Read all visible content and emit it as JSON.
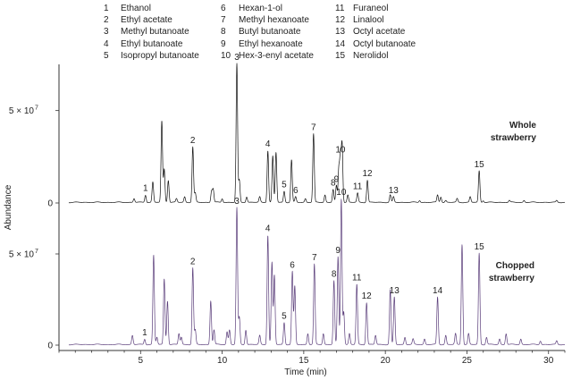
{
  "legend": [
    {
      "num": "1",
      "name": "Ethanol"
    },
    {
      "num": "2",
      "name": "Ethyl acetate"
    },
    {
      "num": "3",
      "name": "Methyl butanoate"
    },
    {
      "num": "4",
      "name": "Ethyl butanoate"
    },
    {
      "num": "5",
      "name": "Isopropyl butanoate"
    },
    {
      "num": "6",
      "name": "Hexan-1-ol"
    },
    {
      "num": "7",
      "name": "Methyl hexanoate"
    },
    {
      "num": "8",
      "name": "Butyl butanoate"
    },
    {
      "num": "9",
      "name": "Ethyl hexanoate"
    },
    {
      "num": "10",
      "name": "Hex-3-enyl acetate"
    },
    {
      "num": "11",
      "name": "Furaneol"
    },
    {
      "num": "12",
      "name": "Linalool"
    },
    {
      "num": "13",
      "name": "Octyl acetate"
    },
    {
      "num": "14",
      "name": "Octyl butanoate"
    },
    {
      "num": "15",
      "name": "Nerolidol"
    }
  ],
  "chart_data": {
    "type": "line",
    "xlabel": "Time (min)",
    "ylabel": "Abundance",
    "xlim": [
      0,
      31
    ],
    "x_ticks": [
      5,
      10,
      15,
      20,
      25,
      30
    ],
    "y_tick_value": 50000000,
    "y_tick_label": "5 × 10",
    "y_tick_exp": "7",
    "y_zero_label": "0",
    "ylim": [
      0,
      75000000
    ],
    "grid": false,
    "colors": {
      "whole": "#111111",
      "chopped": "#5a3d7a"
    },
    "panels": [
      {
        "title_lines": [
          "Whole",
          "strawberry"
        ],
        "peaks": [
          [
            4.6,
            2
          ],
          [
            5.3,
            4
          ],
          [
            5.75,
            11
          ],
          [
            6.3,
            44
          ],
          [
            6.45,
            18
          ],
          [
            6.7,
            12
          ],
          [
            7.2,
            2
          ],
          [
            7.7,
            3
          ],
          [
            8.2,
            30
          ],
          [
            8.35,
            5
          ],
          [
            9.35,
            6
          ],
          [
            9.45,
            7
          ],
          [
            10.0,
            2
          ],
          [
            10.9,
            75
          ],
          [
            11.05,
            12
          ],
          [
            11.5,
            3
          ],
          [
            12.3,
            3
          ],
          [
            12.8,
            28
          ],
          [
            13.1,
            25
          ],
          [
            13.3,
            27
          ],
          [
            13.8,
            6
          ],
          [
            14.25,
            23
          ],
          [
            14.5,
            3
          ],
          [
            15.1,
            2
          ],
          [
            15.6,
            37
          ],
          [
            16.3,
            4
          ],
          [
            16.8,
            7
          ],
          [
            17.0,
            9
          ],
          [
            17.15,
            18
          ],
          [
            17.25,
            25
          ],
          [
            17.35,
            31
          ],
          [
            17.7,
            4
          ],
          [
            18.3,
            5
          ],
          [
            18.9,
            12
          ],
          [
            20.3,
            4
          ],
          [
            20.5,
            3
          ],
          [
            22.1,
            1
          ],
          [
            23.2,
            4
          ],
          [
            23.4,
            3
          ],
          [
            23.7,
            1
          ],
          [
            24.4,
            2
          ],
          [
            25.2,
            3
          ],
          [
            25.75,
            17
          ],
          [
            26.0,
            1
          ],
          [
            27.6,
            1
          ],
          [
            28.5,
            1
          ],
          [
            30.5,
            1
          ]
        ],
        "labels": [
          {
            "text": "1",
            "x": 5.3,
            "y": 4
          },
          {
            "text": "2",
            "x": 8.2,
            "y": 30
          },
          {
            "text": "3",
            "x": 10.9,
            "y": 75
          },
          {
            "text": "4",
            "x": 12.8,
            "y": 28
          },
          {
            "text": "5",
            "x": 13.8,
            "y": 6
          },
          {
            "text": "6",
            "x": 14.5,
            "y": 3
          },
          {
            "text": "7",
            "x": 15.6,
            "y": 37
          },
          {
            "text": "8",
            "x": 16.8,
            "y": 7
          },
          {
            "text": "9",
            "x": 17.0,
            "y": 9
          },
          {
            "text": "10",
            "x": 17.25,
            "y": 25
          },
          {
            "text": "11",
            "x": 18.3,
            "y": 5
          },
          {
            "text": "12",
            "x": 18.9,
            "y": 12
          },
          {
            "text": "13",
            "x": 20.5,
            "y": 3
          },
          {
            "text": "15",
            "x": 25.75,
            "y": 17
          }
        ]
      },
      {
        "title_lines": [
          "Chopped",
          "strawberry"
        ],
        "peaks": [
          [
            4.5,
            5
          ],
          [
            5.25,
            3
          ],
          [
            5.8,
            49
          ],
          [
            6.0,
            4
          ],
          [
            6.45,
            36
          ],
          [
            6.65,
            24
          ],
          [
            7.35,
            6
          ],
          [
            7.5,
            4
          ],
          [
            8.2,
            42
          ],
          [
            8.35,
            8
          ],
          [
            9.3,
            24
          ],
          [
            9.5,
            8
          ],
          [
            10.3,
            7
          ],
          [
            10.45,
            8
          ],
          [
            10.9,
            75
          ],
          [
            11.05,
            15
          ],
          [
            11.45,
            8
          ],
          [
            12.3,
            5
          ],
          [
            12.8,
            60
          ],
          [
            13.05,
            45
          ],
          [
            13.2,
            38
          ],
          [
            13.8,
            12
          ],
          [
            14.3,
            40
          ],
          [
            14.45,
            32
          ],
          [
            15.25,
            6
          ],
          [
            15.65,
            44
          ],
          [
            16.2,
            6
          ],
          [
            16.85,
            35
          ],
          [
            17.1,
            48
          ],
          [
            17.3,
            80
          ],
          [
            17.45,
            18
          ],
          [
            17.8,
            6
          ],
          [
            18.25,
            33
          ],
          [
            18.85,
            23
          ],
          [
            19.4,
            5
          ],
          [
            20.3,
            30
          ],
          [
            20.55,
            26
          ],
          [
            21.2,
            4
          ],
          [
            21.7,
            3
          ],
          [
            22.4,
            3
          ],
          [
            23.2,
            26
          ],
          [
            23.7,
            5
          ],
          [
            24.3,
            6
          ],
          [
            24.7,
            55
          ],
          [
            25.1,
            6
          ],
          [
            25.75,
            50
          ],
          [
            26.2,
            4
          ],
          [
            27.0,
            3
          ],
          [
            27.4,
            6
          ],
          [
            28.3,
            3
          ],
          [
            29.5,
            2
          ],
          [
            30.5,
            2
          ]
        ],
        "labels": [
          {
            "text": "1",
            "x": 5.25,
            "y": 3
          },
          {
            "text": "2",
            "x": 8.2,
            "y": 42
          },
          {
            "text": "3",
            "x": 10.9,
            "y": 75
          },
          {
            "text": "4",
            "x": 12.8,
            "y": 60
          },
          {
            "text": "5",
            "x": 13.8,
            "y": 12
          },
          {
            "text": "6",
            "x": 14.3,
            "y": 40
          },
          {
            "text": "7",
            "x": 15.65,
            "y": 44
          },
          {
            "text": "8",
            "x": 16.85,
            "y": 35
          },
          {
            "text": "9",
            "x": 17.1,
            "y": 48
          },
          {
            "text": "10",
            "x": 17.3,
            "y": 80
          },
          {
            "text": "11",
            "x": 18.25,
            "y": 33
          },
          {
            "text": "12",
            "x": 18.85,
            "y": 23
          },
          {
            "text": "13",
            "x": 20.55,
            "y": 26
          },
          {
            "text": "14",
            "x": 23.2,
            "y": 26
          },
          {
            "text": "15",
            "x": 25.75,
            "y": 50
          }
        ]
      }
    ]
  }
}
